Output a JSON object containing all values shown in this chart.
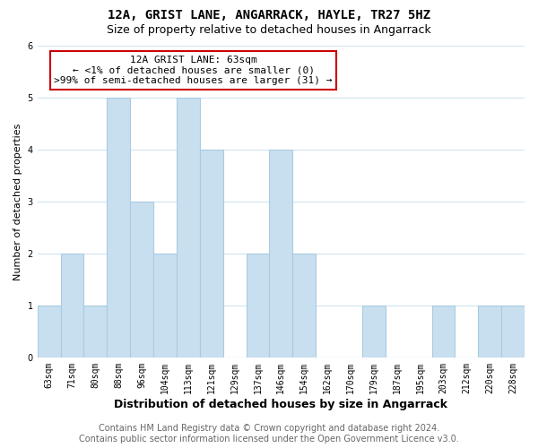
{
  "title": "12A, GRIST LANE, ANGARRACK, HAYLE, TR27 5HZ",
  "subtitle": "Size of property relative to detached houses in Angarrack",
  "xlabel": "Distribution of detached houses by size in Angarrack",
  "ylabel": "Number of detached properties",
  "categories": [
    "63sqm",
    "71sqm",
    "80sqm",
    "88sqm",
    "96sqm",
    "104sqm",
    "113sqm",
    "121sqm",
    "129sqm",
    "137sqm",
    "146sqm",
    "154sqm",
    "162sqm",
    "170sqm",
    "179sqm",
    "187sqm",
    "195sqm",
    "203sqm",
    "212sqm",
    "220sqm",
    "228sqm"
  ],
  "values": [
    1,
    2,
    1,
    5,
    3,
    2,
    5,
    4,
    0,
    2,
    4,
    2,
    0,
    0,
    1,
    0,
    0,
    1,
    0,
    1,
    1
  ],
  "bar_color": "#c8dff0",
  "bar_edge_color": "#aacce0",
  "annotation_line1": "12A GRIST LANE: 63sqm",
  "annotation_line2": "← <1% of detached houses are smaller (0)",
  "annotation_line3": ">99% of semi-detached houses are larger (31) →",
  "annotation_box_edge_color": "#cc0000",
  "ylim": [
    0,
    6
  ],
  "yticks": [
    0,
    1,
    2,
    3,
    4,
    5,
    6
  ],
  "footer_line1": "Contains HM Land Registry data © Crown copyright and database right 2024.",
  "footer_line2": "Contains public sector information licensed under the Open Government Licence v3.0.",
  "bg_color": "#ffffff",
  "grid_color": "#d0e4f0",
  "title_fontsize": 10,
  "subtitle_fontsize": 9,
  "xlabel_fontsize": 9,
  "ylabel_fontsize": 8,
  "tick_fontsize": 7,
  "annotation_fontsize": 8,
  "footer_fontsize": 7
}
